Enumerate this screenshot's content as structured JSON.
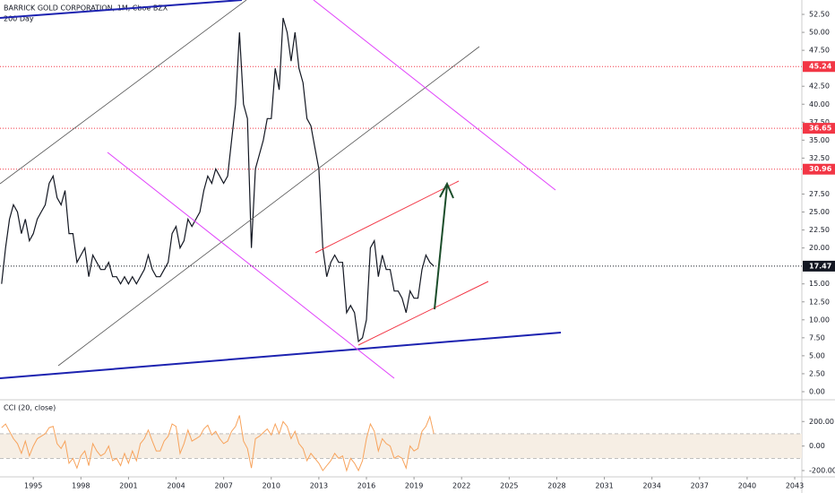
{
  "chart_data": [
    {
      "type": "line",
      "title": "BARRICK GOLD CORPORATION, 1M, Cboe BZX",
      "subtitle": "200 Day",
      "x": [
        1993,
        1993.25,
        1993.5,
        1993.75,
        1994,
        1994.25,
        1994.5,
        1994.75,
        1995,
        1995.25,
        1995.5,
        1995.75,
        1996,
        1996.25,
        1996.5,
        1996.75,
        1997,
        1997.25,
        1997.5,
        1997.75,
        1998,
        1998.25,
        1998.5,
        1998.75,
        1999,
        1999.25,
        1999.5,
        1999.75,
        2000,
        2000.25,
        2000.5,
        2000.75,
        2001,
        2001.25,
        2001.5,
        2001.75,
        2002,
        2002.25,
        2002.5,
        2002.75,
        2003,
        2003.25,
        2003.5,
        2003.75,
        2004,
        2004.25,
        2004.5,
        2004.75,
        2005,
        2005.25,
        2005.5,
        2005.75,
        2006,
        2006.25,
        2006.5,
        2006.75,
        2007,
        2007.25,
        2007.5,
        2007.75,
        2008,
        2008.25,
        2008.5,
        2008.75,
        2009,
        2009.25,
        2009.5,
        2009.75,
        2010,
        2010.25,
        2010.5,
        2010.75,
        2011,
        2011.25,
        2011.5,
        2011.75,
        2012,
        2012.25,
        2012.5,
        2012.75,
        2013,
        2013.25,
        2013.5,
        2013.75,
        2014,
        2014.25,
        2014.5,
        2014.75,
        2015,
        2015.25,
        2015.5,
        2015.75,
        2016,
        2016.25,
        2016.5,
        2016.75,
        2017,
        2017.25,
        2017.5,
        2017.75,
        2018,
        2018.25,
        2018.5,
        2018.75,
        2019,
        2019.25,
        2019.5,
        2019.75,
        2020,
        2020.25
      ],
      "series": [
        {
          "color": "#131722",
          "values": [
            15,
            20,
            24,
            26,
            25,
            22,
            24,
            21,
            22,
            24,
            25,
            26,
            29,
            30,
            27,
            26,
            28,
            22,
            22,
            18,
            19,
            20,
            16,
            19,
            18,
            17,
            17,
            18,
            16,
            16,
            15,
            16,
            15,
            16,
            15,
            16,
            17,
            19,
            17,
            16,
            16,
            17,
            18,
            22,
            23,
            20,
            21,
            24,
            23,
            24,
            25,
            28,
            30,
            29,
            31,
            30,
            29,
            30,
            35,
            40,
            50,
            40,
            38,
            20,
            31,
            33,
            35,
            38,
            38,
            45,
            42,
            52,
            50,
            46,
            50,
            45,
            43,
            38,
            37,
            34,
            31,
            20,
            16,
            18,
            19,
            18,
            18,
            11,
            12,
            11,
            7,
            7.5,
            10,
            20,
            21,
            16,
            19,
            17,
            17,
            14,
            14,
            13,
            11,
            14,
            13,
            13,
            17,
            19,
            18,
            17.47
          ]
        }
      ],
      "xlim": [
        1992.9,
        2043.45
      ],
      "ylim": [
        -1.0,
        54.5
      ],
      "xticks": [
        1995,
        1998,
        2001,
        2004,
        2007,
        2010,
        2013,
        2016,
        2019,
        2022,
        2025,
        2028,
        2031,
        2034,
        2037,
        2040,
        2043
      ],
      "yticks": [
        {
          "value": 0,
          "label": "0.00"
        },
        {
          "value": 2.5,
          "label": "2.50"
        },
        {
          "value": 5,
          "label": "5.00"
        },
        {
          "value": 7.5,
          "label": "7.50"
        },
        {
          "value": 10,
          "label": "10.00"
        },
        {
          "value": 12.5,
          "label": "12.50"
        },
        {
          "value": 15,
          "label": "15.00"
        },
        {
          "value": 20,
          "label": "20.00"
        },
        {
          "value": 22.5,
          "label": "22.50"
        },
        {
          "value": 25,
          "label": "25.00"
        },
        {
          "value": 27.5,
          "label": "27.50"
        },
        {
          "value": 32.5,
          "label": "32.50"
        },
        {
          "value": 35,
          "label": "35.00"
        },
        {
          "value": 37.5,
          "label": "37.50"
        },
        {
          "value": 40,
          "label": "40.00"
        },
        {
          "value": 42.5,
          "label": "42.50"
        },
        {
          "value": 47.5,
          "label": "47.50"
        },
        {
          "value": 50,
          "label": "50.00"
        },
        {
          "value": 52.5,
          "label": "52.50"
        }
      ],
      "levels": [
        {
          "value": 45.24,
          "color": "#f23645"
        },
        {
          "value": 36.65,
          "color": "#f23645"
        },
        {
          "value": 30.96,
          "color": "#f23645"
        },
        {
          "value": 17.47,
          "color": "#131722"
        }
      ]
    },
    {
      "type": "line",
      "title": "CCI (20, close)",
      "series": [
        {
          "color": "#f7a35c",
          "values": [
            150,
            180,
            120,
            60,
            20,
            -60,
            40,
            -80,
            0,
            60,
            80,
            100,
            150,
            160,
            20,
            -20,
            40,
            -140,
            -100,
            -180,
            -80,
            -40,
            -160,
            20,
            -40,
            -80,
            -60,
            0,
            -120,
            -100,
            -160,
            -60,
            -140,
            -40,
            -120,
            20,
            60,
            130,
            40,
            -40,
            -40,
            40,
            80,
            180,
            160,
            -60,
            20,
            130,
            40,
            60,
            80,
            140,
            170,
            90,
            120,
            60,
            20,
            40,
            120,
            160,
            250,
            40,
            -20,
            -180,
            60,
            80,
            110,
            140,
            90,
            180,
            100,
            200,
            160,
            60,
            120,
            20,
            -20,
            -120,
            -60,
            -100,
            -140,
            -200,
            -160,
            -120,
            -60,
            -100,
            -80,
            -200,
            -100,
            -140,
            -200,
            -120,
            60,
            180,
            120,
            -40,
            60,
            20,
            0,
            -100,
            -80,
            -100,
            -180,
            0,
            -40,
            -20,
            120,
            160,
            240,
            100
          ]
        }
      ],
      "ylim": [
        -244,
        370
      ],
      "yticks": [
        {
          "value": 200,
          "label": "200.00"
        },
        {
          "value": 0,
          "label": "0.00"
        },
        {
          "value": -200,
          "label": "-200.00"
        }
      ],
      "band": [
        -100,
        100
      ]
    }
  ]
}
